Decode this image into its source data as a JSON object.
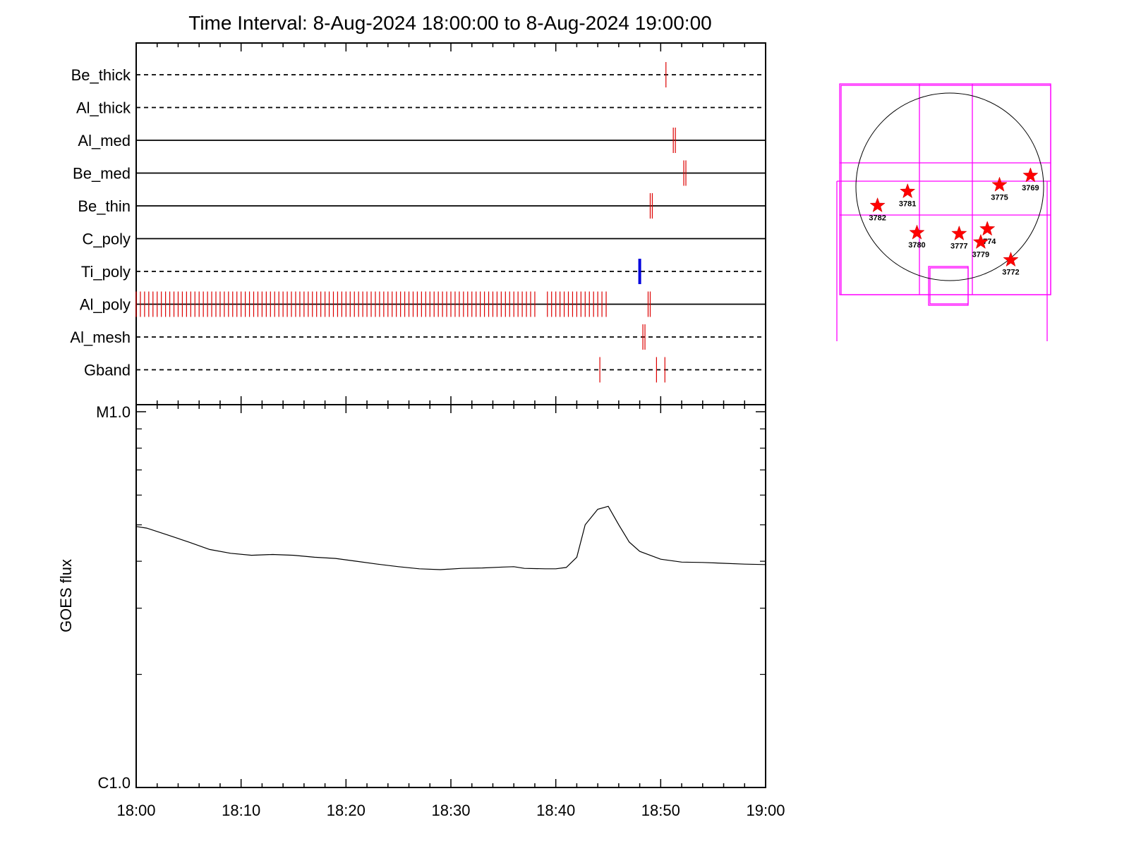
{
  "title": "Time Interval:  8-Aug-2024 18:00:00 to  8-Aug-2024 19:00:00",
  "chart_data": [
    {
      "type": "timeline",
      "x_unit": "minutes after 18:00",
      "xlim": [
        0,
        60
      ],
      "xtick_labels": [
        "18:00",
        "18:10",
        "18:20",
        "18:30",
        "18:40",
        "18:50",
        "19:00"
      ],
      "rows": [
        {
          "name": "Be_thick",
          "line": "dashed",
          "events": [
            {
              "t": 50.5,
              "color": "#dd0000"
            }
          ]
        },
        {
          "name": "Al_thick",
          "line": "dashed",
          "events": []
        },
        {
          "name": "Al_med",
          "line": "solid",
          "events": [
            {
              "t": 51.2,
              "color": "#dd0000"
            },
            {
              "t": 51.4,
              "color": "#dd0000"
            }
          ]
        },
        {
          "name": "Be_med",
          "line": "solid",
          "events": [
            {
              "t": 52.2,
              "color": "#dd0000"
            },
            {
              "t": 52.4,
              "color": "#dd0000"
            }
          ]
        },
        {
          "name": "Be_thin",
          "line": "solid",
          "events": [
            {
              "t": 49.0,
              "color": "#dd0000"
            },
            {
              "t": 49.2,
              "color": "#dd0000"
            }
          ]
        },
        {
          "name": "C_poly",
          "line": "solid",
          "events": []
        },
        {
          "name": "Ti_poly",
          "line": "dashed",
          "events": [
            {
              "t": 48.0,
              "color": "#0000dd",
              "thick": true
            }
          ]
        },
        {
          "name": "Al_poly",
          "line": "solid",
          "events_every": {
            "start": 0.0,
            "end": 44.8,
            "step": 0.4,
            "color": "#dd0000"
          },
          "events": [
            {
              "t": 48.8,
              "color": "#dd0000"
            },
            {
              "t": 49.0,
              "color": "#dd0000"
            }
          ]
        },
        {
          "name": "Al_mesh",
          "line": "dashed",
          "events": [
            {
              "t": 48.3,
              "color": "#dd0000"
            },
            {
              "t": 48.5,
              "color": "#dd0000"
            }
          ]
        },
        {
          "name": "Gband",
          "line": "dashed",
          "events": [
            {
              "t": 44.2,
              "color": "#dd0000"
            },
            {
              "t": 49.6,
              "color": "#dd0000"
            },
            {
              "t": 50.4,
              "color": "#dd0000"
            }
          ]
        }
      ]
    },
    {
      "type": "line",
      "xlim": [
        0,
        60
      ],
      "ylabel": "GOES flux",
      "yscale": "log",
      "ylim": [
        1e-06,
        1e-05
      ],
      "ytick_labels": [
        "C1.0",
        "M1.0"
      ],
      "xtick_labels": [
        "18:00",
        "18:10",
        "18:20",
        "18:30",
        "18:40",
        "18:50",
        "19:00"
      ],
      "series": [
        {
          "x": [
            0,
            1,
            3,
            5,
            7,
            9,
            11,
            13,
            15,
            17,
            19,
            21,
            23,
            25,
            27,
            29,
            31,
            33,
            35,
            36,
            37,
            39,
            40,
            41,
            42,
            42.8,
            44,
            45,
            46,
            47,
            48,
            50,
            52,
            54,
            56,
            58,
            60
          ],
          "y": [
            4.95e-06,
            4.9e-06,
            4.7e-06,
            4.5e-06,
            4.3e-06,
            4.2e-06,
            4.15e-06,
            4.17e-06,
            4.15e-06,
            4.1e-06,
            4.07e-06,
            4e-06,
            3.93e-06,
            3.87e-06,
            3.82e-06,
            3.8e-06,
            3.83e-06,
            3.84e-06,
            3.86e-06,
            3.87e-06,
            3.83e-06,
            3.82e-06,
            3.82e-06,
            3.85e-06,
            4.1e-06,
            5e-06,
            5.5e-06,
            5.6e-06,
            5e-06,
            4.5e-06,
            4.25e-06,
            4.05e-06,
            3.98e-06,
            3.97e-06,
            3.95e-06,
            3.93e-06,
            3.92e-06
          ]
        }
      ]
    },
    {
      "type": "map",
      "regions": [
        {
          "label": "3769",
          "x": 0.86,
          "y": -0.12
        },
        {
          "label": "3775",
          "x": 0.53,
          "y": -0.02
        },
        {
          "label": "3781",
          "x": -0.45,
          "y": 0.05
        },
        {
          "label": "3782",
          "x": -0.77,
          "y": 0.2
        },
        {
          "label": "3780",
          "x": -0.35,
          "y": 0.49
        },
        {
          "label": "3777",
          "x": 0.1,
          "y": 0.5
        },
        {
          "label": "3774",
          "x": 0.4,
          "y": 0.45
        },
        {
          "label": "3779",
          "x": 0.33,
          "y": 0.59
        },
        {
          "label": "3772",
          "x": 0.65,
          "y": 0.78
        }
      ]
    }
  ]
}
